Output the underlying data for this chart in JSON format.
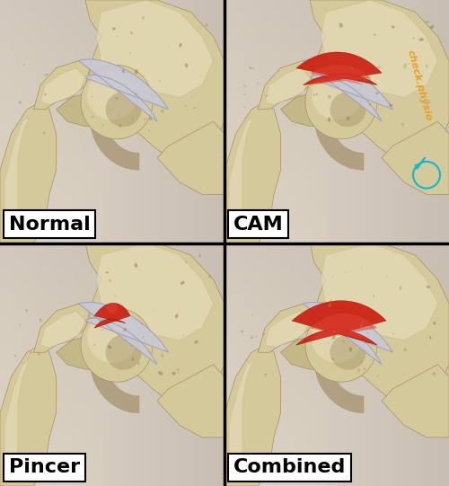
{
  "panels": [
    "Normal",
    "CAM",
    "Pincer",
    "Combined"
  ],
  "bg_light": "#e8ddd0",
  "bg_shadow": "#c8bfb0",
  "bone_base": "#d4c99a",
  "bone_light": "#e8e0c0",
  "bone_dark": "#a89060",
  "bone_shadow": "#907848",
  "bone_mid": "#c4b888",
  "cartilage_color": "#c8c8d4",
  "cartilage_edge": "#a0a0b8",
  "imp_red": "#cc2010",
  "imp_red2": "#e04030",
  "imp_dark": "#881500",
  "femur_shaft": "#ccc090",
  "label_bg": "#ffffff",
  "label_text": "#000000",
  "label_fontsize": 16,
  "brand_text": "check.physio",
  "brand_orange": "#e8a020",
  "brand_cyan": "#10b8d0",
  "panel_bg": "#d8cfc0",
  "panel_bg2": "#cfc8bb",
  "shadow_left": "#c0b8a8"
}
